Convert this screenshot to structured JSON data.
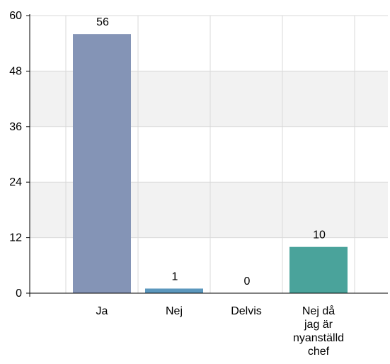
{
  "chart_data": {
    "type": "bar",
    "categories": [
      "Ja",
      "Nej",
      "Delvis",
      "Nej då jag är nyanställd chef"
    ],
    "category_lines": [
      [
        "Ja"
      ],
      [
        "Nej"
      ],
      [
        "Delvis"
      ],
      [
        "Nej då",
        "jag är",
        "nyanställd",
        "chef"
      ]
    ],
    "values": [
      56,
      1,
      0,
      10
    ],
    "data_labels": [
      "56",
      "1",
      "0",
      "10"
    ],
    "y_ticks": [
      0,
      12,
      24,
      36,
      48,
      60
    ],
    "ylim": [
      0,
      60
    ],
    "grid": true,
    "legend": "none",
    "colors": [
      "#8494b6",
      "#5b97bd",
      "#5b97bd",
      "#4aa39b"
    ],
    "band_color": "#f2f2f2",
    "grid_color": "#d9d9d9"
  }
}
